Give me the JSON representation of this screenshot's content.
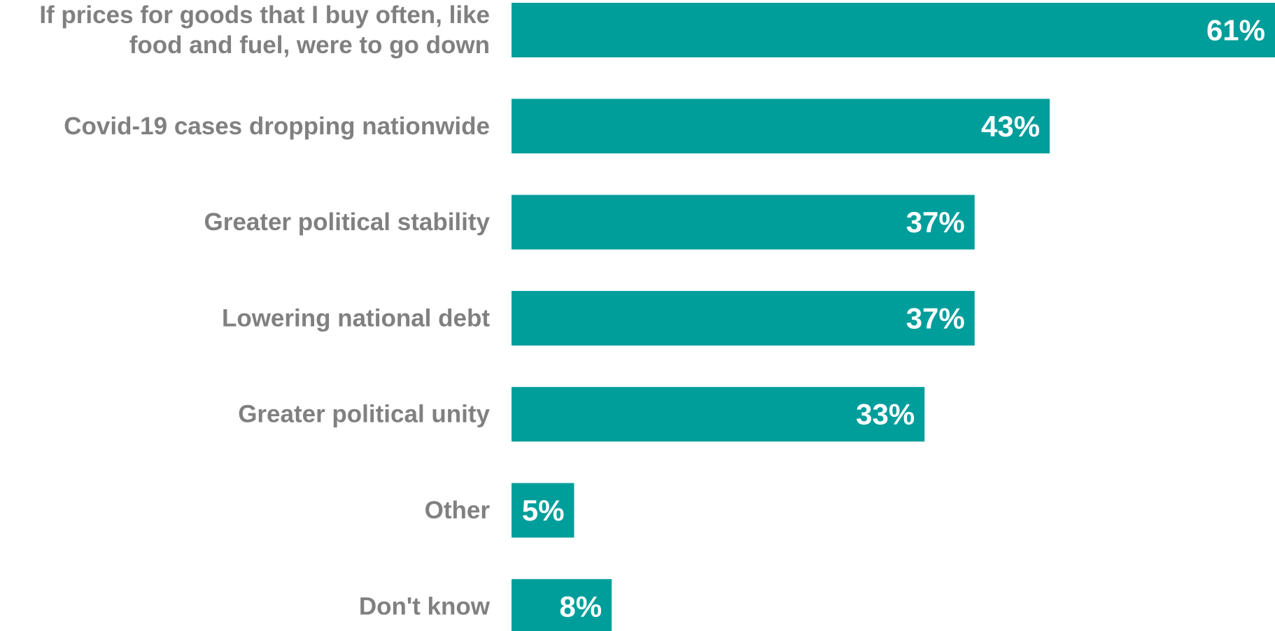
{
  "colors": {
    "bar": "#009E9B",
    "category_label": "#808080",
    "value_label": "#ffffff"
  },
  "chart_data": {
    "type": "bar",
    "orientation": "horizontal",
    "title": "",
    "xlabel": "",
    "ylabel": "",
    "xlim": [
      0,
      61
    ],
    "grid": false,
    "legend": "none",
    "value_suffix": "%",
    "categories": [
      [
        "If prices for goods that I buy often, like",
        "food and fuel, were to go down"
      ],
      [
        "Covid-19 cases dropping nationwide"
      ],
      [
        "Greater political stability"
      ],
      [
        "Lowering national debt"
      ],
      [
        "Greater political unity"
      ],
      [
        "Other"
      ],
      [
        "Don't know"
      ]
    ],
    "values": [
      61,
      43,
      37,
      37,
      33,
      5,
      8
    ],
    "data_labels": [
      "61%",
      "43%",
      "37%",
      "37%",
      "33%",
      "5%",
      "8%"
    ]
  }
}
